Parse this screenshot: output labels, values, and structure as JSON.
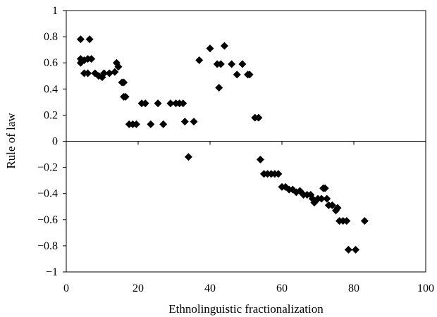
{
  "chart_data": {
    "type": "scatter",
    "xlabel": "Ethnolinguistic fractionalization",
    "ylabel": "Rule of law",
    "xlim": [
      0,
      100
    ],
    "ylim": [
      -1,
      1
    ],
    "x_ticks": [
      0,
      20,
      40,
      60,
      80,
      100
    ],
    "y_ticks": [
      1,
      0.8,
      0.6,
      0.4,
      0.2,
      0,
      -0.2,
      -0.4,
      -0.6,
      -0.8,
      -1
    ],
    "x_tick_labels": [
      "0",
      "20",
      "40",
      "60",
      "80",
      "100"
    ],
    "y_tick_labels": [
      "1",
      "0.8",
      "0.6",
      "0.4",
      "0.2",
      "0",
      "−0.2",
      "−0.4",
      "−0.6",
      "−0.8",
      "−1"
    ],
    "marker": "diamond",
    "grid": false,
    "zero_line": true,
    "color": "#000000",
    "points": [
      [
        4,
        0.78
      ],
      [
        6.5,
        0.78
      ],
      [
        4,
        0.6
      ],
      [
        4,
        0.63
      ],
      [
        5,
        0.62
      ],
      [
        6,
        0.63
      ],
      [
        7,
        0.63
      ],
      [
        5,
        0.52
      ],
      [
        6,
        0.52
      ],
      [
        8,
        0.52
      ],
      [
        9,
        0.5
      ],
      [
        10,
        0.49
      ],
      [
        10.5,
        0.52
      ],
      [
        12,
        0.52
      ],
      [
        13.5,
        0.53
      ],
      [
        14,
        0.6
      ],
      [
        14.5,
        0.57
      ],
      [
        15.5,
        0.45
      ],
      [
        16,
        0.45
      ],
      [
        16,
        0.34
      ],
      [
        16.5,
        0.34
      ],
      [
        17.5,
        0.13
      ],
      [
        18.5,
        0.13
      ],
      [
        19.5,
        0.13
      ],
      [
        21,
        0.29
      ],
      [
        22,
        0.29
      ],
      [
        23.5,
        0.13
      ],
      [
        25.5,
        0.29
      ],
      [
        27,
        0.13
      ],
      [
        29,
        0.29
      ],
      [
        30.5,
        0.29
      ],
      [
        31.5,
        0.29
      ],
      [
        32.5,
        0.29
      ],
      [
        33,
        0.15
      ],
      [
        35.5,
        0.15
      ],
      [
        34,
        -0.12
      ],
      [
        37,
        0.62
      ],
      [
        40,
        0.71
      ],
      [
        42,
        0.59
      ],
      [
        42.5,
        0.41
      ],
      [
        43,
        0.59
      ],
      [
        44,
        0.73
      ],
      [
        46,
        0.59
      ],
      [
        47.5,
        0.51
      ],
      [
        49,
        0.59
      ],
      [
        50.5,
        0.51
      ],
      [
        51,
        0.51
      ],
      [
        52.5,
        0.18
      ],
      [
        53.5,
        0.18
      ],
      [
        54,
        -0.14
      ],
      [
        55,
        -0.25
      ],
      [
        56,
        -0.25
      ],
      [
        57,
        -0.25
      ],
      [
        58,
        -0.25
      ],
      [
        59,
        -0.25
      ],
      [
        60,
        -0.35
      ],
      [
        61,
        -0.35
      ],
      [
        62,
        -0.37
      ],
      [
        63,
        -0.37
      ],
      [
        64,
        -0.39
      ],
      [
        65,
        -0.38
      ],
      [
        66,
        -0.41
      ],
      [
        67,
        -0.41
      ],
      [
        68,
        -0.41
      ],
      [
        68.5,
        -0.44
      ],
      [
        69,
        -0.47
      ],
      [
        70,
        -0.44
      ],
      [
        71,
        -0.44
      ],
      [
        71.5,
        -0.36
      ],
      [
        72,
        -0.36
      ],
      [
        72.5,
        -0.44
      ],
      [
        73,
        -0.49
      ],
      [
        74,
        -0.49
      ],
      [
        75,
        -0.53
      ],
      [
        75.5,
        -0.51
      ],
      [
        76,
        -0.61
      ],
      [
        77,
        -0.61
      ],
      [
        78,
        -0.61
      ],
      [
        78.5,
        -0.83
      ],
      [
        80.5,
        -0.83
      ],
      [
        83,
        -0.61
      ]
    ]
  }
}
